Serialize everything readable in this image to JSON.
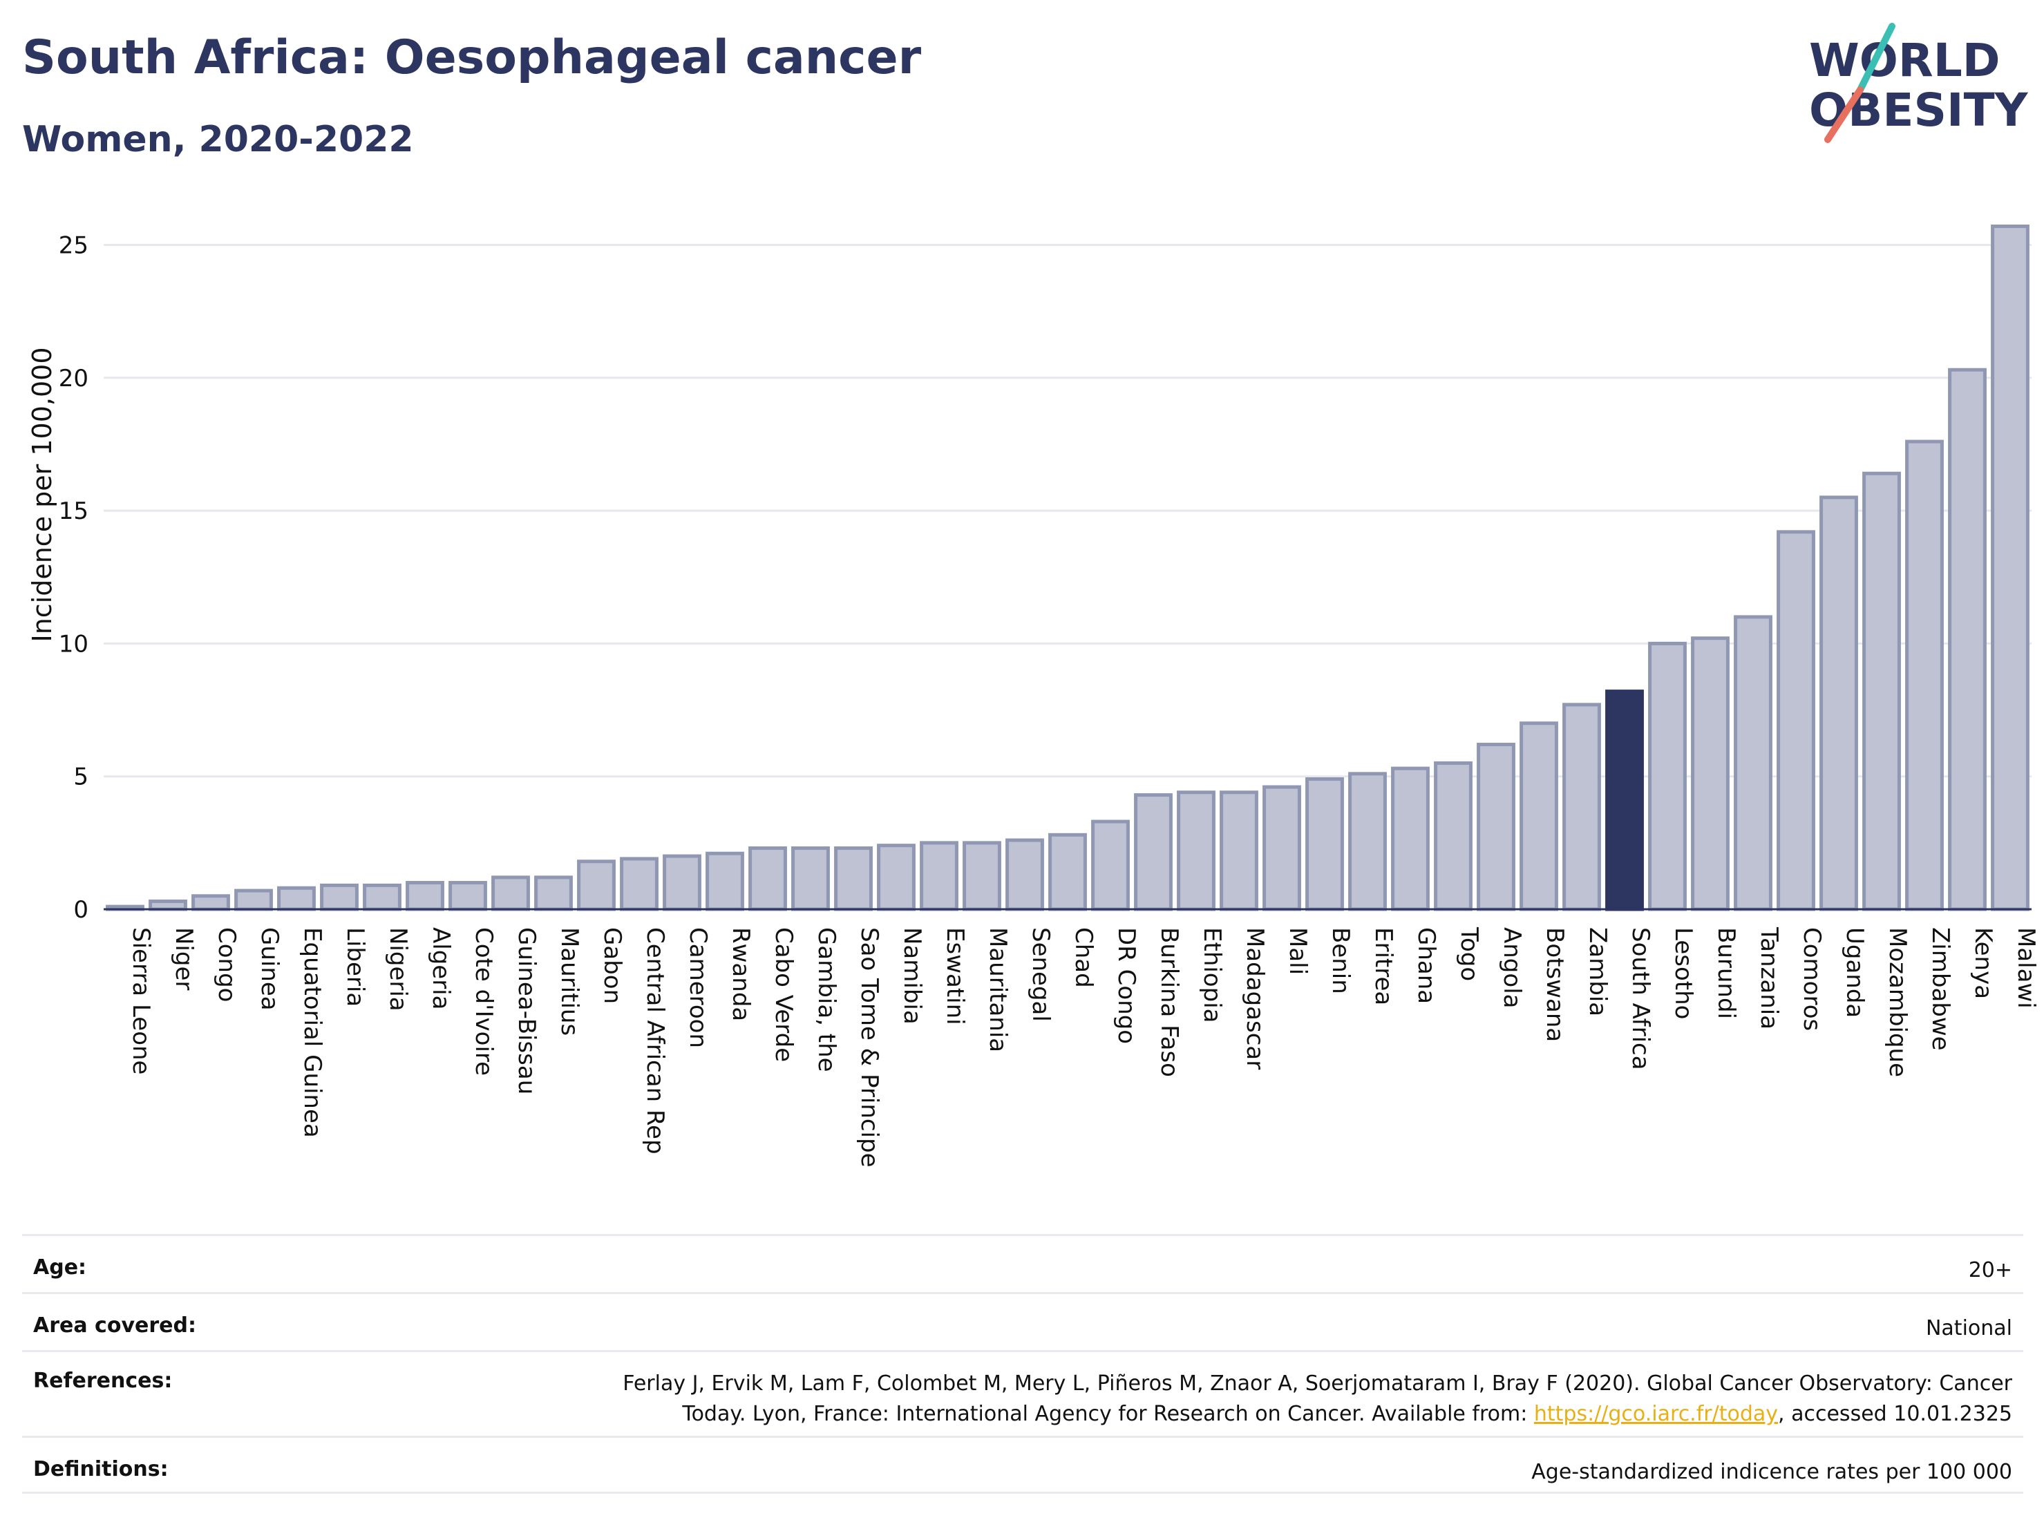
{
  "header": {
    "title": "South Africa: Oesophageal cancer",
    "subtitle": "Women, 2020-2022"
  },
  "logo": {
    "line1": "WORLD",
    "line2": "OBESITY",
    "accent_teal": "#3bbfb5",
    "accent_coral": "#e8705f"
  },
  "colors": {
    "bar": "#bec2d2",
    "bar_border": "#9097b3",
    "highlight": "#2d3561",
    "grid": "#e6e8ee",
    "axis": "#2d3561"
  },
  "chart_data": {
    "type": "bar",
    "ylabel": "Incidence per 100,000",
    "xlabel": "",
    "ylim": [
      0,
      26
    ],
    "yticks": [
      0,
      5,
      10,
      15,
      20,
      25
    ],
    "grid": true,
    "highlight": "South Africa",
    "categories": [
      "Sierra Leone",
      "Niger",
      "Congo",
      "Guinea",
      "Equatorial Guinea",
      "Liberia",
      "Nigeria",
      "Algeria",
      "Cote d'Ivoire",
      "Guinea-Bissau",
      "Mauritius",
      "Gabon",
      "Central African Rep",
      "Cameroon",
      "Rwanda",
      "Cabo Verde",
      "Gambia, the",
      "Sao Tome & Principe",
      "Namibia",
      "Eswatini",
      "Mauritania",
      "Senegal",
      "Chad",
      "DR Congo",
      "Burkina Faso",
      "Ethiopia",
      "Madagascar",
      "Mali",
      "Benin",
      "Eritrea",
      "Ghana",
      "Togo",
      "Angola",
      "Botswana",
      "Zambia",
      "South Africa",
      "Lesotho",
      "Burundi",
      "Tanzania",
      "Comoros",
      "Uganda",
      "Mozambique",
      "Zimbabwe",
      "Kenya",
      "Malawi"
    ],
    "values": [
      0.1,
      0.3,
      0.5,
      0.7,
      0.8,
      0.9,
      0.9,
      1.0,
      1.0,
      1.2,
      1.2,
      1.8,
      1.9,
      2.0,
      2.1,
      2.3,
      2.3,
      2.3,
      2.4,
      2.5,
      2.5,
      2.6,
      2.8,
      3.3,
      4.3,
      4.4,
      4.4,
      4.6,
      4.9,
      5.1,
      5.3,
      5.5,
      6.2,
      7.0,
      7.7,
      8.2,
      10.0,
      10.2,
      11.0,
      14.2,
      15.5,
      16.4,
      17.6,
      20.3,
      25.7
    ]
  },
  "info": {
    "rows": [
      {
        "key": "Age:",
        "value": "20+"
      },
      {
        "key": "Area covered:",
        "value": "National"
      },
      {
        "key": "References:",
        "value_line1": "Ferlay J, Ervik M, Lam F, Colombet M, Mery L, Piñeros M, Znaor A, Soerjomataram I, Bray F (2020). Global Cancer Observatory: Cancer",
        "value_line2_pre": "Today. Lyon, France: International Agency for Research on Cancer. Available from: ",
        "link": "https://gco.iarc.fr/today",
        "value_line2_post": ", accessed 10.01.2325"
      },
      {
        "key": "Definitions:",
        "value": "Age-standardized indicence rates per 100 000"
      }
    ]
  }
}
